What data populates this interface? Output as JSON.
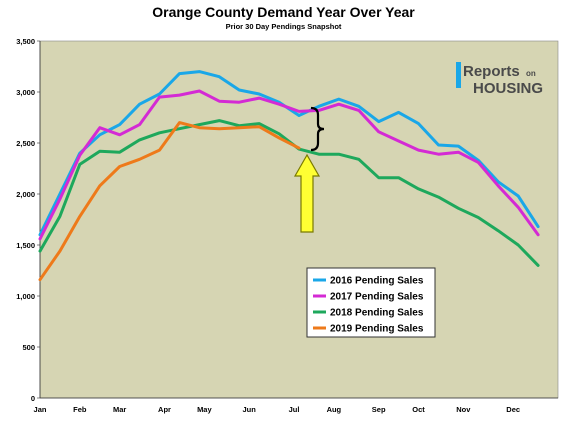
{
  "chart_data": {
    "type": "line",
    "title": "Orange County Demand Year Over Year",
    "subtitle": "Prior 30 Day Pendings Snapshot",
    "ylim": [
      0,
      3500
    ],
    "yticks": [
      "3,500",
      "3,000",
      "2,500",
      "2,000",
      "1,500",
      "1,000",
      "500",
      "0"
    ],
    "xlim": [
      0,
      52
    ],
    "xticks": [
      {
        "label": "Jan",
        "x": 0
      },
      {
        "label": "Feb",
        "x": 4
      },
      {
        "label": "Mar",
        "x": 8
      },
      {
        "label": "Apr",
        "x": 12.5
      },
      {
        "label": "May",
        "x": 16.5
      },
      {
        "label": "Jun",
        "x": 21
      },
      {
        "label": "Jul",
        "x": 25.5
      },
      {
        "label": "Aug",
        "x": 29.5
      },
      {
        "label": "Sep",
        "x": 34
      },
      {
        "label": "Oct",
        "x": 38
      },
      {
        "label": "Nov",
        "x": 42.5
      },
      {
        "label": "Dec",
        "x": 47.5
      }
    ],
    "grid": false,
    "plot_background": "#d6d5b3",
    "series": [
      {
        "name": "2016 Pending Sales",
        "color": "#1aa7e8",
        "x": [
          0,
          2,
          4,
          6,
          8,
          10,
          12,
          14,
          16,
          18,
          20,
          22,
          24,
          26,
          28,
          30,
          32,
          34,
          36,
          38,
          40,
          42,
          44,
          46,
          48,
          50
        ],
        "y": [
          1600,
          2000,
          2400,
          2580,
          2680,
          2880,
          2980,
          3180,
          3200,
          3150,
          3020,
          2980,
          2900,
          2770,
          2860,
          2930,
          2860,
          2710,
          2800,
          2690,
          2480,
          2470,
          2330,
          2120,
          1980,
          1680
        ]
      },
      {
        "name": "2017 Pending Sales",
        "color": "#d42ad4",
        "x": [
          0,
          2,
          4,
          6,
          8,
          10,
          12,
          14,
          16,
          18,
          20,
          22,
          24,
          26,
          28,
          30,
          32,
          34,
          36,
          38,
          40,
          42,
          44,
          46,
          48,
          50
        ],
        "y": [
          1560,
          1950,
          2380,
          2650,
          2580,
          2680,
          2950,
          2970,
          3010,
          2910,
          2900,
          2940,
          2880,
          2810,
          2820,
          2880,
          2820,
          2610,
          2520,
          2430,
          2390,
          2410,
          2310,
          2080,
          1870,
          1600
        ]
      },
      {
        "name": "2018 Pending Sales",
        "color": "#1ea85c",
        "x": [
          0,
          2,
          4,
          6,
          8,
          10,
          12,
          14,
          16,
          18,
          20,
          22,
          24,
          26,
          28,
          30,
          32,
          34,
          36,
          38,
          40,
          42,
          44,
          46,
          48,
          50
        ],
        "y": [
          1440,
          1780,
          2290,
          2420,
          2410,
          2530,
          2600,
          2640,
          2680,
          2720,
          2670,
          2690,
          2590,
          2440,
          2390,
          2390,
          2340,
          2160,
          2160,
          2050,
          1970,
          1860,
          1770,
          1640,
          1500,
          1300
        ]
      },
      {
        "name": "2019 Pending Sales",
        "color": "#ee7a1a",
        "x": [
          0,
          2,
          4,
          6,
          8,
          10,
          12,
          14,
          16,
          18,
          20,
          22,
          24,
          26
        ],
        "y": [
          1160,
          1440,
          1780,
          2080,
          2270,
          2340,
          2430,
          2700,
          2650,
          2640,
          2650,
          2660,
          2550,
          2450
        ]
      }
    ]
  },
  "brand": {
    "word_reports": "Reports",
    "word_on": "on",
    "word_housing": "HOUSING"
  },
  "annotations": {
    "arrow_color": "#ffff33",
    "arrow_outline": "#7a7a00",
    "brace_color": "#000000"
  }
}
